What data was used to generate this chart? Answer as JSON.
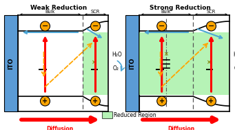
{
  "title_left": "Weak Reduction",
  "title_right": "Strong Reduction",
  "label_ito": "ITO",
  "label_bulk": "Bulk",
  "label_scr": "SCR",
  "label_h2o": "H₂O",
  "label_o2": "O₂",
  "label_diffusion": "Diffusion",
  "label_reduced": "Reduced Region",
  "bg_color": "#ffffff",
  "ito_color": "#5b9bd5",
  "green_fill": "#90ee90",
  "arrow_red": "#ff0000",
  "arrow_blue": "#4da6d5",
  "arrow_orange": "#ffa500",
  "border_color": "#000000",
  "fig_width": 3.41,
  "fig_height": 1.89,
  "dpi": 100
}
